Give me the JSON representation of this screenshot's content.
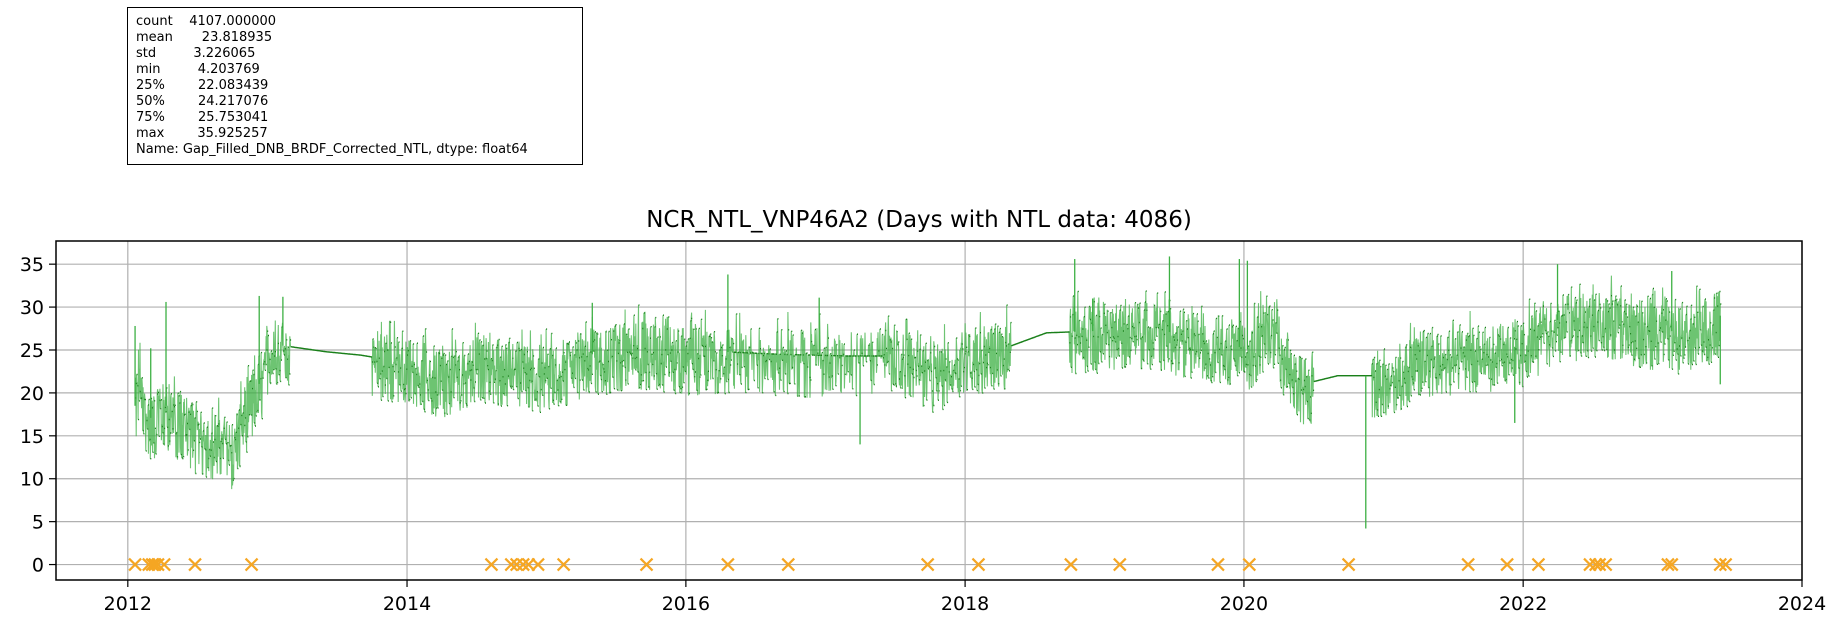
{
  "stats": {
    "lines": [
      "count    4107.000000",
      "mean       23.818935",
      "std         3.226065",
      "min         4.203769",
      "25%        22.083439",
      "50%        24.217076",
      "75%        25.753041",
      "max        35.925257",
      "Name: Gap_Filled_DNB_BRDF_Corrected_NTL, dtype: float64"
    ]
  },
  "chart_data": {
    "type": "line",
    "title": "NCR_NTL_VNP46A2 (Days with NTL data: 4086)",
    "xlabel": "",
    "ylabel": "",
    "xlim": [
      "2011-06-27",
      "2024-01-01"
    ],
    "ylim": [
      -1.8,
      37.7
    ],
    "x_ticks": [
      "2012",
      "2014",
      "2016",
      "2018",
      "2020",
      "2022",
      "2024"
    ],
    "y_ticks": [
      "0",
      "5",
      "10",
      "15",
      "20",
      "25",
      "30",
      "35"
    ],
    "grid": true,
    "colors": {
      "line": "#3cb043",
      "baseline": "#1a7f1a",
      "missing": "#f5a623"
    },
    "series": [
      {
        "kind": "daily",
        "values_by_date": [
          [
            "2012-01-20",
            18.5
          ],
          [
            "2012-02-01",
            22.0
          ],
          [
            "2012-02-20",
            17.2
          ],
          [
            "2012-03-10",
            17.0
          ],
          [
            "2012-04-10",
            18.5
          ],
          [
            "2012-05-10",
            17.0
          ],
          [
            "2012-06-01",
            16.8
          ],
          [
            "2012-07-10",
            14.8
          ],
          [
            "2012-09-01",
            14.7
          ],
          [
            "2012-10-01",
            13.6
          ],
          [
            "2012-11-01",
            17.5
          ],
          [
            "2012-12-15",
            21.5
          ],
          [
            "2013-01-10",
            25.7
          ],
          [
            "2013-06-01",
            24.8
          ],
          [
            "2013-09-01",
            24.4
          ],
          [
            "2013-12-31",
            23.5
          ],
          [
            "2014-04-01",
            22.0
          ],
          [
            "2014-07-01",
            23.6
          ],
          [
            "2014-10-01",
            23.2
          ],
          [
            "2015-01-01",
            22.5
          ],
          [
            "2015-05-01",
            24.5
          ],
          [
            "2015-09-01",
            25.4
          ],
          [
            "2016-01-01",
            24.5
          ],
          [
            "2016-04-01",
            24.8
          ],
          [
            "2016-09-01",
            24.5
          ],
          [
            "2017-03-01",
            24.3
          ],
          [
            "2017-06-01",
            24.3
          ],
          [
            "2017-09-01",
            24.3
          ],
          [
            "2017-10-01",
            22.0
          ],
          [
            "2018-01-01",
            24.7
          ],
          [
            "2018-04-01",
            25.0
          ],
          [
            "2018-08-01",
            27.0
          ],
          [
            "2018-12-01",
            27.2
          ],
          [
            "2019-03-01",
            28.0
          ],
          [
            "2019-07-01",
            27.0
          ],
          [
            "2019-11-01",
            26.0
          ],
          [
            "2020-01-15",
            25.0
          ],
          [
            "2020-03-01",
            28.0
          ],
          [
            "2020-06-01",
            21.0
          ],
          [
            "2020-09-01",
            22.0
          ],
          [
            "2020-12-01",
            22.0
          ],
          [
            "2021-02-01",
            22.5
          ],
          [
            "2021-05-01",
            24.5
          ],
          [
            "2021-09-01",
            24.8
          ],
          [
            "2022-01-01",
            25.5
          ],
          [
            "2022-04-01",
            28.5
          ],
          [
            "2022-08-01",
            29.0
          ],
          [
            "2022-12-01",
            27.5
          ],
          [
            "2023-03-01",
            27.0
          ],
          [
            "2023-06-01",
            29.0
          ]
        ]
      },
      {
        "kind": "spikes",
        "values_by_date": [
          [
            "2012-01-20",
            27.8
          ],
          [
            "2012-03-01",
            25.2
          ],
          [
            "2012-04-10",
            30.6
          ],
          [
            "2012-12-10",
            31.3
          ],
          [
            "2013-02-10",
            31.2
          ],
          [
            "2015-05-01",
            30.5
          ],
          [
            "2016-04-20",
            33.8
          ],
          [
            "2016-12-15",
            31.1
          ],
          [
            "2017-04-01",
            14.0
          ],
          [
            "2018-12-01",
            31.0
          ],
          [
            "2018-10-15",
            35.6
          ],
          [
            "2019-06-20",
            35.9
          ],
          [
            "2019-12-20",
            35.6
          ],
          [
            "2020-01-10",
            35.4
          ],
          [
            "2020-11-15",
            4.2
          ],
          [
            "2021-12-10",
            16.5
          ],
          [
            "2022-04-01",
            35.0
          ],
          [
            "2023-01-25",
            34.2
          ],
          [
            "2023-06-01",
            21.0
          ]
        ]
      },
      {
        "kind": "missing",
        "dates": [
          "2012-01-20",
          "2012-02-25",
          "2012-03-05",
          "2012-03-12",
          "2012-03-20",
          "2012-04-05",
          "2012-06-25",
          "2012-11-20",
          "2014-08-10",
          "2014-10-01",
          "2014-10-15",
          "2014-11-01",
          "2014-11-15",
          "2014-12-10",
          "2015-02-15",
          "2015-09-20",
          "2016-04-20",
          "2016-09-25",
          "2017-09-25",
          "2018-02-05",
          "2018-10-05",
          "2019-02-10",
          "2019-10-25",
          "2020-01-15",
          "2020-10-01",
          "2021-08-10",
          "2021-11-20",
          "2022-02-10",
          "2022-06-25",
          "2022-07-10",
          "2022-07-20",
          "2022-08-05",
          "2023-01-15",
          "2023-01-25",
          "2023-06-01",
          "2023-06-15"
        ]
      }
    ]
  }
}
